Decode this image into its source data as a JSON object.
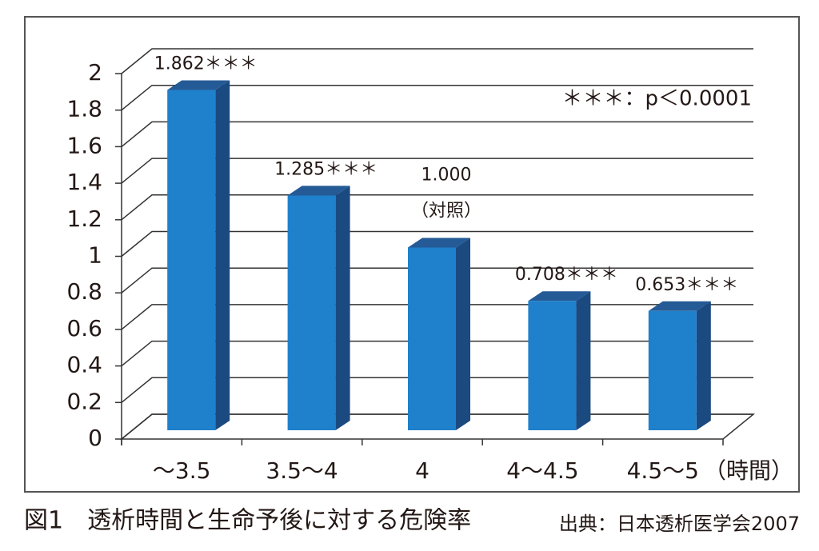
{
  "chart_data": {
    "type": "bar3d",
    "categories": [
      "〜3.5",
      "3.5〜4",
      "4",
      "4〜4.5",
      "4.5〜5"
    ],
    "values": [
      1.862,
      1.285,
      1.0,
      0.708,
      0.653
    ],
    "value_labels": [
      "1.862＊＊＊",
      "1.285＊＊＊",
      "1.000",
      "0.708＊＊＊",
      "0.653＊＊＊"
    ],
    "color": "#1f80cc",
    "ylim": [
      0,
      2
    ],
    "yticks": [
      0,
      0.2,
      0.4,
      0.6,
      0.8,
      1,
      1.2,
      1.4,
      1.6,
      1.8,
      2
    ],
    "grid": true,
    "x_unit": "（時間）",
    "annotations": [
      "（対照）",
      "＊＊＊：p＜0.0001"
    ],
    "caption": "図1　透析時間と生命予後に対する危険率",
    "source": "出典：日本透析医学会2007"
  }
}
